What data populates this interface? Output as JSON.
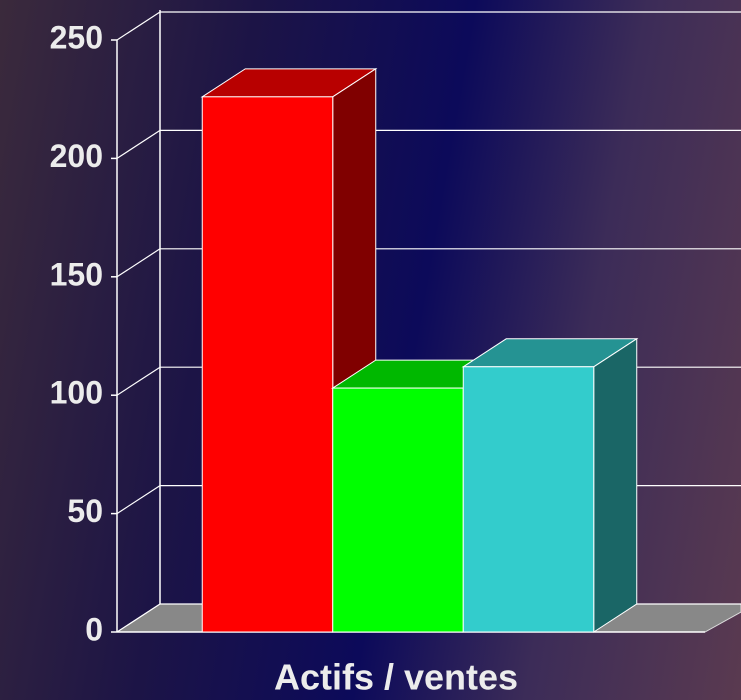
{
  "chart_data": {
    "type": "bar",
    "categories": [
      "Actifs / ventes"
    ],
    "series": [
      {
        "color": "#ff0000",
        "values": [
          226
        ]
      },
      {
        "color": "#00ff00",
        "values": [
          103
        ]
      },
      {
        "color": "#33cccc",
        "values": [
          112
        ]
      }
    ],
    "ylim": [
      0,
      250
    ],
    "yticks": [
      0,
      50,
      100,
      150,
      200,
      250
    ],
    "grid": true
  }
}
